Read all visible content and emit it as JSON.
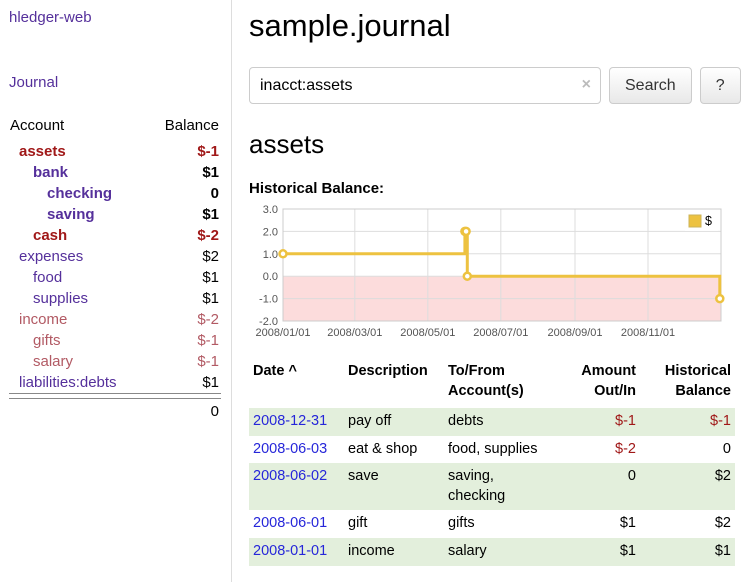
{
  "app": {
    "brand": "hledger-web",
    "nav_journal": "Journal"
  },
  "sidebar": {
    "header": {
      "account": "Account",
      "balance": "Balance"
    },
    "accounts": [
      {
        "name": "assets",
        "indent": 1,
        "name_color": "red",
        "name_bold": true,
        "balance": "$-1",
        "balance_color": "red",
        "balance_bold": true
      },
      {
        "name": "bank",
        "indent": 2,
        "name_color": "purple",
        "name_bold": true,
        "balance": "$1",
        "balance_color": "black",
        "balance_bold": true
      },
      {
        "name": "checking",
        "indent": 3,
        "name_color": "purple",
        "name_bold": true,
        "balance": "0",
        "balance_color": "black",
        "balance_bold": true
      },
      {
        "name": "saving",
        "indent": 3,
        "name_color": "purple",
        "name_bold": true,
        "balance": "$1",
        "balance_color": "black",
        "balance_bold": true
      },
      {
        "name": "cash",
        "indent": 2,
        "name_color": "red",
        "name_bold": true,
        "balance": "$-2",
        "balance_color": "red",
        "balance_bold": true
      },
      {
        "name": "expenses",
        "indent": 1,
        "name_color": "purple",
        "name_bold": false,
        "balance": "$2",
        "balance_color": "black",
        "balance_bold": false
      },
      {
        "name": "food",
        "indent": 2,
        "name_color": "purple",
        "name_bold": false,
        "balance": "$1",
        "balance_color": "black",
        "balance_bold": false
      },
      {
        "name": "supplies",
        "indent": 2,
        "name_color": "purple",
        "name_bold": false,
        "balance": "$1",
        "balance_color": "black",
        "balance_bold": false
      },
      {
        "name": "income",
        "indent": 1,
        "name_color": "softred",
        "name_bold": false,
        "balance": "$-2",
        "balance_color": "softred",
        "balance_bold": false
      },
      {
        "name": "gifts",
        "indent": 2,
        "name_color": "softred",
        "name_bold": false,
        "balance": "$-1",
        "balance_color": "softred",
        "balance_bold": false
      },
      {
        "name": "salary",
        "indent": 2,
        "name_color": "softred",
        "name_bold": false,
        "balance": "$-1",
        "balance_color": "softred",
        "balance_bold": false
      },
      {
        "name": "liabilities:debts",
        "indent": 1,
        "name_color": "purple",
        "name_bold": false,
        "balance": "$1",
        "balance_color": "black",
        "balance_bold": false
      }
    ],
    "total": "0"
  },
  "main": {
    "title": "sample.journal",
    "search": {
      "value": "inacct:assets",
      "clear_label": "×",
      "button": "Search",
      "help": "?"
    },
    "account_heading": "assets",
    "chart_label": "Historical Balance:"
  },
  "chart_data": {
    "type": "line",
    "step": true,
    "title": "Historical Balance",
    "x_range": [
      "2008-01-01",
      "2009-01-01"
    ],
    "y_range": [
      -2,
      3
    ],
    "x_ticks": [
      "2008/01/01",
      "2008/03/01",
      "2008/05/01",
      "2008/07/01",
      "2008/09/01",
      "2008/11/01"
    ],
    "y_ticks": [
      3,
      2,
      1,
      0,
      -1,
      -2
    ],
    "series": [
      {
        "name": "$",
        "color": "#edc240",
        "points": [
          [
            "2008-01-01",
            1
          ],
          [
            "2008-06-01",
            2
          ],
          [
            "2008-06-02",
            2
          ],
          [
            "2008-06-03",
            0
          ],
          [
            "2008-12-31",
            -1
          ]
        ]
      }
    ],
    "grid": true,
    "legend_position": "top-right",
    "negative_region_color": "#fcdcdc"
  },
  "register": {
    "sort_indicator": "^",
    "columns": [
      {
        "line1": "Date",
        "line2": "",
        "align": "left",
        "sortable": true
      },
      {
        "line1": "Description",
        "line2": "",
        "align": "left",
        "sortable": false
      },
      {
        "line1": "To/From",
        "line2": "Account(s)",
        "align": "left",
        "sortable": false
      },
      {
        "line1": "Amount",
        "line2": "Out/In",
        "align": "right",
        "sortable": false
      },
      {
        "line1": "Historical",
        "line2": "Balance",
        "align": "right",
        "sortable": false
      }
    ],
    "rows": [
      {
        "date": "2008-12-31",
        "description": "pay off",
        "accounts": [
          "debts"
        ],
        "amount": "$-1",
        "amount_negative": true,
        "balance": "$-1",
        "balance_negative": true
      },
      {
        "date": "2008-06-03",
        "description": "eat & shop",
        "accounts": [
          "food",
          "supplies"
        ],
        "amount": "$-2",
        "amount_negative": true,
        "balance": "0",
        "balance_negative": false
      },
      {
        "date": "2008-06-02",
        "description": "save",
        "accounts": [
          "saving",
          "checking"
        ],
        "amount": "0",
        "amount_negative": false,
        "balance": "$2",
        "balance_negative": false
      },
      {
        "date": "2008-06-01",
        "description": "gift",
        "accounts": [
          "gifts"
        ],
        "amount": "$1",
        "amount_negative": false,
        "balance": "$2",
        "balance_negative": false
      },
      {
        "date": "2008-01-01",
        "description": "income",
        "accounts": [
          "salary"
        ],
        "amount": "$1",
        "amount_negative": false,
        "balance": "$1",
        "balance_negative": false
      }
    ]
  }
}
